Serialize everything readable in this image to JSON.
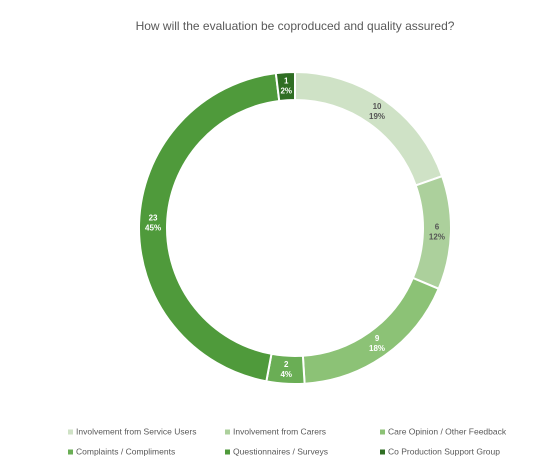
{
  "chart_data": {
    "type": "donut",
    "title": "How will the evaluation be coproduced and quality assured?",
    "categories": [
      "Involvement from Service Users",
      "Involvement from Carers",
      "Care Opinion / Other Feedback",
      "Complaints / Compliments",
      "Questionnaires / Surveys",
      "Co Production Support Group"
    ],
    "values": [
      10,
      6,
      9,
      2,
      23,
      1
    ],
    "percent_labels": [
      "19%",
      "12%",
      "18%",
      "4%",
      "45%",
      "2%"
    ],
    "colors": [
      "#cfe2c6",
      "#acd09c",
      "#8cc276",
      "#6aae55",
      "#4f9a3b",
      "#2f6e23"
    ],
    "legend": "bottom"
  }
}
